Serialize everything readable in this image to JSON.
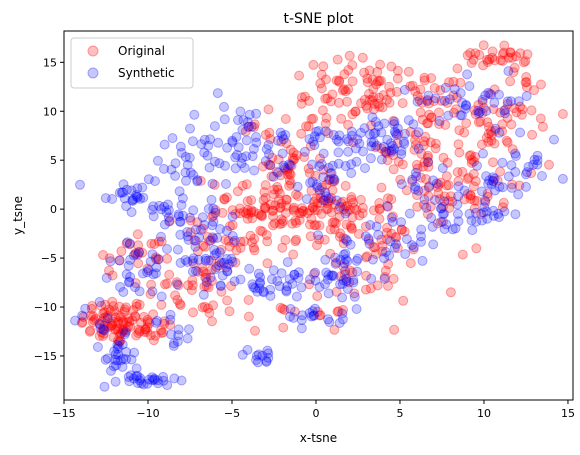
{
  "chart_data": {
    "type": "scatter",
    "title": "t-SNE plot",
    "xlabel": "x-tsne",
    "ylabel": "y_tsne",
    "xlim": [
      -15.0,
      15.3
    ],
    "ylim": [
      -19.5,
      18.2
    ],
    "xticks": [
      -15,
      -10,
      -5,
      0,
      5,
      10,
      15
    ],
    "yticks": [
      -15,
      -10,
      -5,
      0,
      5,
      10,
      15
    ],
    "legend_location": "upper-left",
    "series": [
      {
        "name": "Original",
        "color": "#ff0000",
        "alpha": 0.25,
        "clusters": [
          {
            "cx": -12.0,
            "cy": -11.5,
            "sx": 1.0,
            "sy": 1.2,
            "n": 70
          },
          {
            "cx": -10.3,
            "cy": -12.0,
            "sx": 0.9,
            "sy": 0.8,
            "n": 30
          },
          {
            "cx": -10.5,
            "cy": -4.5,
            "sx": 1.5,
            "sy": 1.3,
            "n": 25
          },
          {
            "cx": -7.5,
            "cy": -8.0,
            "sx": 1.5,
            "sy": 1.5,
            "n": 30
          },
          {
            "cx": -5.0,
            "cy": -3.0,
            "sx": 1.5,
            "sy": 1.8,
            "n": 40
          },
          {
            "cx": -2.5,
            "cy": 0.5,
            "sx": 2.0,
            "sy": 2.0,
            "n": 80
          },
          {
            "cx": 0.0,
            "cy": 0.0,
            "sx": 1.8,
            "sy": 2.0,
            "n": 60
          },
          {
            "cx": 2.5,
            "cy": -1.0,
            "sx": 1.5,
            "sy": 1.5,
            "n": 40
          },
          {
            "cx": 3.0,
            "cy": -6.0,
            "sx": 1.8,
            "sy": 2.2,
            "n": 40
          },
          {
            "cx": 0.5,
            "cy": 9.0,
            "sx": 2.0,
            "sy": 1.5,
            "n": 35
          },
          {
            "cx": 3.0,
            "cy": 12.5,
            "sx": 2.5,
            "sy": 1.5,
            "n": 50
          },
          {
            "cx": 6.5,
            "cy": 11.5,
            "sx": 2.0,
            "sy": 1.5,
            "n": 45
          },
          {
            "cx": 10.5,
            "cy": 15.5,
            "sx": 1.0,
            "sy": 0.6,
            "n": 30
          },
          {
            "cx": 11.5,
            "cy": 10.0,
            "sx": 1.3,
            "sy": 2.0,
            "n": 40
          },
          {
            "cx": 9.5,
            "cy": 5.0,
            "sx": 1.5,
            "sy": 2.5,
            "n": 50
          },
          {
            "cx": 7.5,
            "cy": 0.5,
            "sx": 1.5,
            "sy": 1.5,
            "n": 35
          },
          {
            "cx": 5.5,
            "cy": 5.5,
            "sx": 1.5,
            "sy": 1.5,
            "n": 30
          },
          {
            "cx": -2.0,
            "cy": 5.0,
            "sx": 1.5,
            "sy": 1.5,
            "n": 20
          },
          {
            "cx": -0.5,
            "cy": -10.5,
            "sx": 1.5,
            "sy": 1.0,
            "n": 15
          },
          {
            "cx": -5.5,
            "cy": -9.0,
            "sx": 1.0,
            "sy": 1.0,
            "n": 10
          }
        ]
      },
      {
        "name": "Synthetic",
        "color": "#0000ff",
        "alpha": 0.22,
        "clusters": [
          {
            "cx": -11.8,
            "cy": -15.5,
            "sx": 0.5,
            "sy": 1.2,
            "n": 25
          },
          {
            "cx": -10.0,
            "cy": -17.5,
            "sx": 0.9,
            "sy": 0.3,
            "n": 25
          },
          {
            "cx": -11.5,
            "cy": 1.5,
            "sx": 1.0,
            "sy": 1.0,
            "n": 20
          },
          {
            "cx": -9.0,
            "cy": 0.0,
            "sx": 1.0,
            "sy": 1.0,
            "n": 20
          },
          {
            "cx": -7.5,
            "cy": 5.0,
            "sx": 1.0,
            "sy": 2.0,
            "n": 30
          },
          {
            "cx": -4.5,
            "cy": 7.0,
            "sx": 1.2,
            "sy": 2.0,
            "n": 40
          },
          {
            "cx": -3.0,
            "cy": -7.5,
            "sx": 2.0,
            "sy": 0.8,
            "n": 40
          },
          {
            "cx": -7.0,
            "cy": -5.5,
            "sx": 1.5,
            "sy": 1.0,
            "n": 30
          },
          {
            "cx": -6.5,
            "cy": -2.0,
            "sx": 1.2,
            "sy": 1.5,
            "n": 30
          },
          {
            "cx": -10.5,
            "cy": -6.5,
            "sx": 1.2,
            "sy": 1.5,
            "n": 25
          },
          {
            "cx": -3.3,
            "cy": -15.0,
            "sx": 0.8,
            "sy": 0.4,
            "n": 12
          },
          {
            "cx": 0.0,
            "cy": 5.5,
            "sx": 1.8,
            "sy": 1.5,
            "n": 40
          },
          {
            "cx": 0.5,
            "cy": 2.0,
            "sx": 0.6,
            "sy": 1.0,
            "n": 15
          },
          {
            "cx": 4.0,
            "cy": 7.5,
            "sx": 1.3,
            "sy": 1.2,
            "n": 50
          },
          {
            "cx": 1.0,
            "cy": -7.0,
            "sx": 1.5,
            "sy": 2.0,
            "n": 40
          },
          {
            "cx": 4.5,
            "cy": -3.0,
            "sx": 1.5,
            "sy": 2.0,
            "n": 40
          },
          {
            "cx": 9.5,
            "cy": 11.0,
            "sx": 1.8,
            "sy": 1.2,
            "n": 40
          },
          {
            "cx": 11.0,
            "cy": 2.5,
            "sx": 1.0,
            "sy": 1.5,
            "n": 25
          },
          {
            "cx": 8.5,
            "cy": -0.5,
            "sx": 1.5,
            "sy": 1.0,
            "n": 25
          },
          {
            "cx": 12.5,
            "cy": 5.0,
            "sx": 1.0,
            "sy": 1.5,
            "n": 15
          },
          {
            "cx": 6.5,
            "cy": 2.5,
            "sx": 1.0,
            "sy": 1.0,
            "n": 15
          },
          {
            "cx": -13.0,
            "cy": -12.0,
            "sx": 0.6,
            "sy": 1.0,
            "n": 10
          },
          {
            "cx": -8.5,
            "cy": -12.0,
            "sx": 0.8,
            "sy": 1.0,
            "n": 12
          },
          {
            "cx": -0.5,
            "cy": -11.0,
            "sx": 0.8,
            "sy": 0.5,
            "n": 12
          }
        ]
      }
    ]
  }
}
